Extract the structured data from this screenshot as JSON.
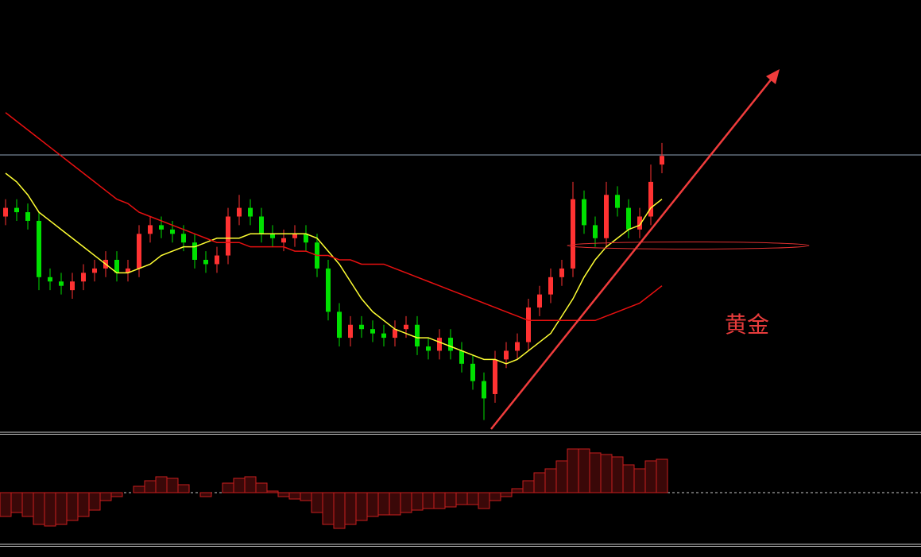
{
  "chart_data": {
    "type": "candlestick",
    "annotation": "黄金",
    "up_color": "#ff3232",
    "down_color": "#00e000",
    "ylim": [
      0,
      100
    ],
    "open": [
      50,
      52,
      51,
      49,
      36,
      35,
      33,
      35,
      37,
      38,
      40,
      37,
      38,
      46,
      48,
      47,
      46,
      44,
      40,
      39,
      41,
      50,
      52,
      50,
      46,
      44,
      45,
      46,
      44,
      38,
      28,
      22,
      25,
      24,
      23,
      22,
      24,
      25,
      20,
      19,
      22,
      19,
      16,
      12,
      9,
      17,
      19,
      21,
      29,
      32,
      36,
      38,
      54,
      48,
      45,
      55,
      52,
      47,
      50,
      62
    ],
    "high": [
      54,
      54,
      53,
      51,
      38,
      37,
      37,
      39,
      40,
      42,
      42,
      40,
      48,
      50,
      50,
      49,
      48,
      46,
      42,
      43,
      52,
      55,
      54,
      52,
      48,
      47,
      48,
      48,
      46,
      40,
      30,
      27,
      27,
      26,
      25,
      26,
      27,
      27,
      22,
      24,
      24,
      21,
      18,
      14,
      19,
      21,
      23,
      31,
      34,
      38,
      40,
      58,
      56,
      50,
      58,
      57,
      54,
      52,
      62,
      67
    ],
    "low": [
      48,
      49,
      47,
      33,
      33,
      32,
      31,
      33,
      35,
      36,
      35,
      35,
      36,
      44,
      45,
      44,
      42,
      38,
      37,
      37,
      39,
      48,
      48,
      44,
      43,
      42,
      43,
      42,
      36,
      26,
      20,
      20,
      22,
      21,
      20,
      20,
      22,
      18,
      17,
      17,
      17,
      14,
      10,
      3,
      7,
      15,
      17,
      19,
      27,
      30,
      34,
      36,
      46,
      43,
      43,
      50,
      45,
      45,
      48,
      60
    ],
    "close": [
      52,
      51,
      49,
      36,
      35,
      34,
      35,
      37,
      38,
      40,
      37,
      38,
      46,
      48,
      47,
      46,
      44,
      40,
      39,
      41,
      50,
      52,
      50,
      46,
      45,
      45,
      46,
      44,
      38,
      28,
      22,
      25,
      24,
      23,
      22,
      24,
      25,
      20,
      19,
      22,
      19,
      16,
      12,
      8,
      17,
      19,
      21,
      29,
      32,
      36,
      38,
      54,
      48,
      45,
      55,
      52,
      47,
      50,
      58,
      64
    ],
    "lines": [
      {
        "color": "#ffff33",
        "values": [
          60,
          58,
          55,
          51,
          49,
          47,
          45,
          43,
          41,
          39,
          37,
          37,
          38,
          39,
          41,
          42,
          43,
          43,
          44,
          45,
          45,
          45,
          46,
          46,
          46,
          46,
          46,
          46,
          45,
          42,
          39,
          35,
          31,
          28,
          26,
          24,
          23,
          22,
          22,
          21,
          20,
          19,
          18,
          17,
          17,
          16,
          17,
          19,
          21,
          23,
          27,
          31,
          36,
          40,
          43,
          45,
          47,
          48,
          52,
          54
        ]
      },
      {
        "color": "#e81010",
        "values": [
          74,
          72,
          70,
          68,
          66,
          64,
          62,
          60,
          58,
          56,
          54,
          53,
          51,
          50,
          49,
          48,
          47,
          46,
          45,
          44,
          44,
          44,
          43,
          43,
          43,
          43,
          42,
          42,
          41,
          41,
          40,
          40,
          39,
          39,
          39,
          38,
          37,
          36,
          35,
          34,
          33,
          32,
          31,
          30,
          29,
          28,
          27,
          26,
          26,
          26,
          26,
          26,
          26,
          26,
          27,
          28,
          29,
          30,
          32,
          34
        ]
      }
    ],
    "indicator": {
      "type": "bar",
      "color": "#c81e1e",
      "ylim": [
        -60,
        70
      ],
      "values": [
        -30,
        -25,
        -30,
        -40,
        -42,
        -40,
        -35,
        -30,
        -22,
        -10,
        -5,
        0,
        8,
        15,
        20,
        18,
        10,
        0,
        -5,
        0,
        12,
        18,
        20,
        12,
        2,
        -5,
        -8,
        -10,
        -25,
        -40,
        -45,
        -40,
        -35,
        -30,
        -28,
        -28,
        -25,
        -22,
        -20,
        -20,
        -18,
        -15,
        -15,
        -20,
        -10,
        -5,
        5,
        15,
        25,
        30,
        40,
        55,
        55,
        50,
        48,
        45,
        35,
        30,
        40,
        42
      ]
    }
  }
}
